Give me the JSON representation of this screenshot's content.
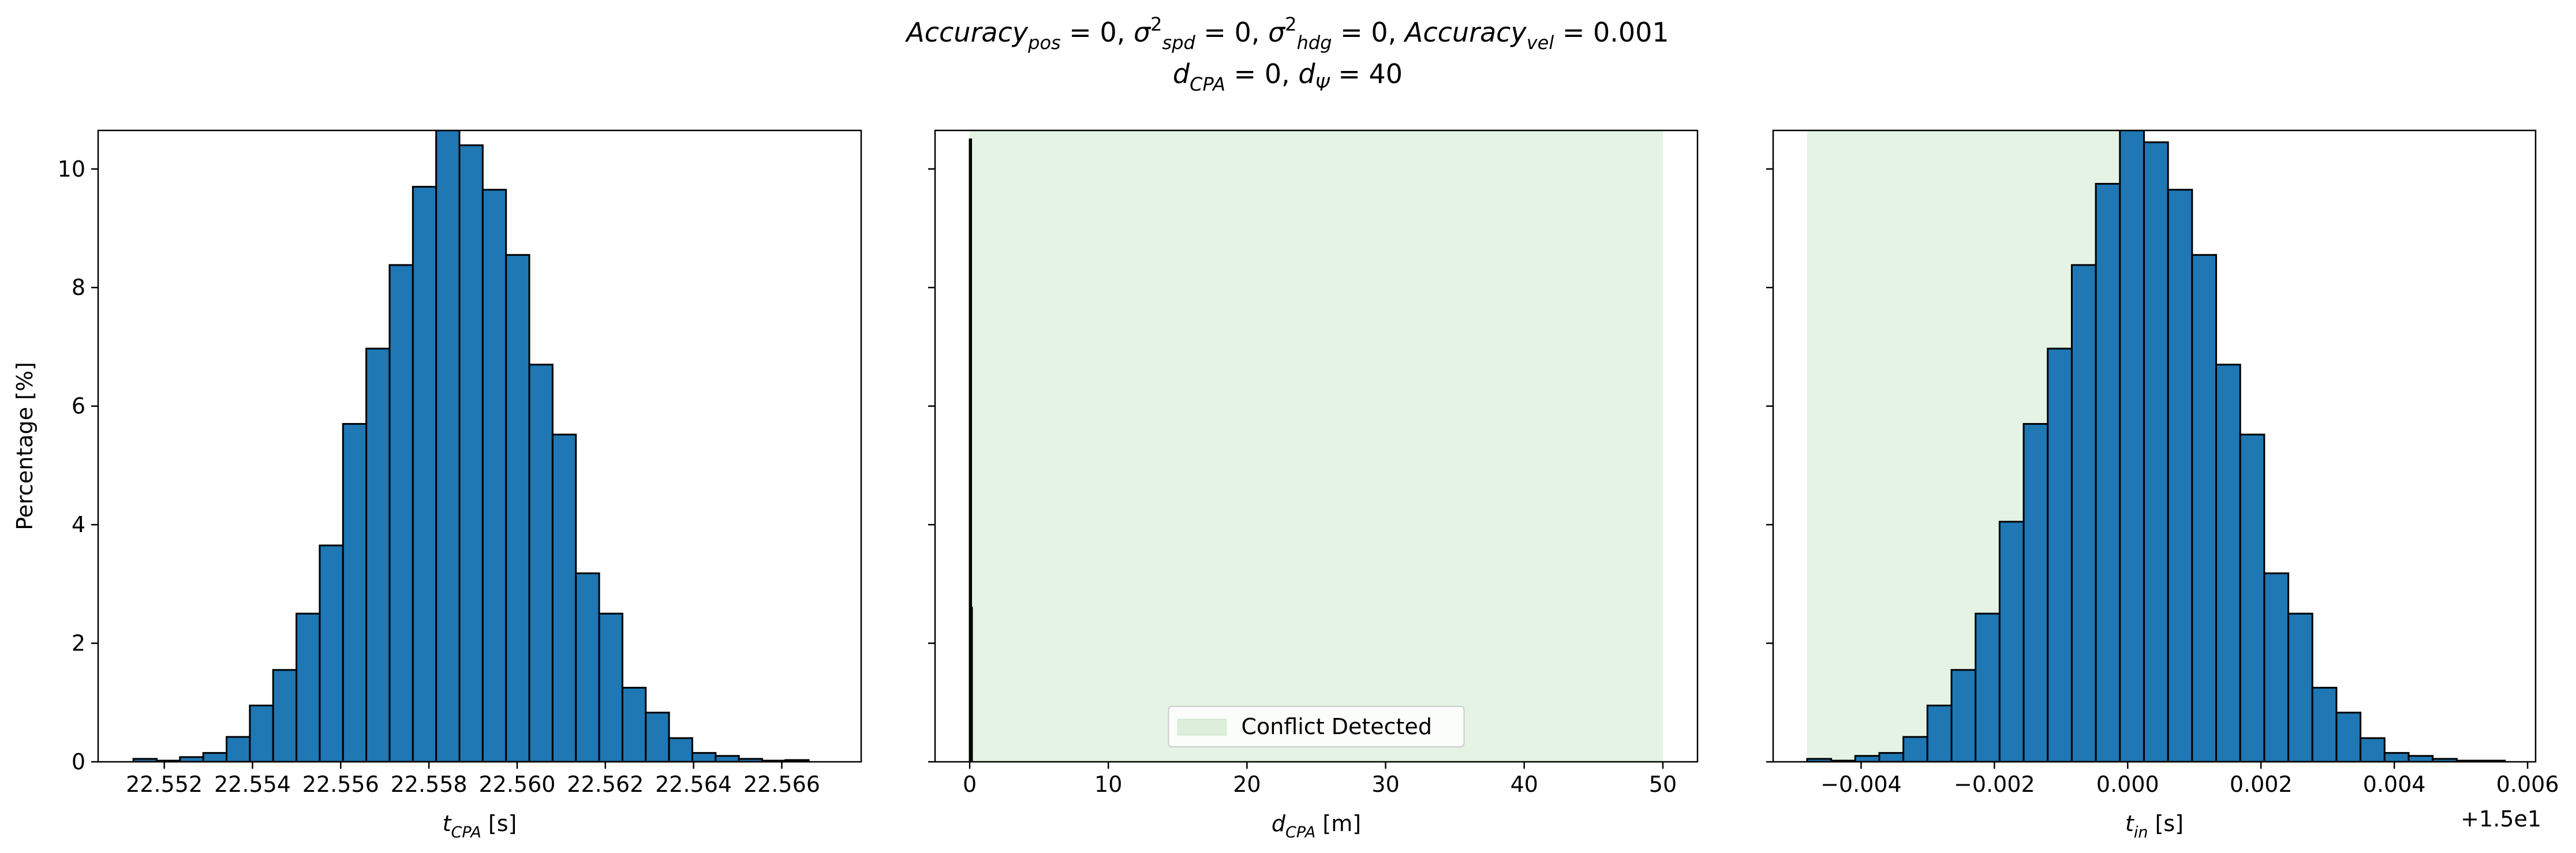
{
  "figure": {
    "title_line1": {
      "parts": [
        {
          "t": "Accuracy",
          "s": "i"
        },
        {
          "t": "pos",
          "s": "sub"
        },
        {
          "t": " = 0, ",
          "s": "n"
        },
        {
          "t": "σ",
          "s": "i"
        },
        {
          "t": "2",
          "s": "sup"
        },
        {
          "t": "spd",
          "s": "sub"
        },
        {
          "t": " = 0, ",
          "s": "n"
        },
        {
          "t": "σ",
          "s": "i"
        },
        {
          "t": "2",
          "s": "sup"
        },
        {
          "t": "hdg",
          "s": "sub"
        },
        {
          "t": " = 0, ",
          "s": "n"
        },
        {
          "t": "Accuracy",
          "s": "i"
        },
        {
          "t": "vel",
          "s": "sub"
        },
        {
          "t": " = 0.001",
          "s": "n"
        }
      ]
    },
    "title_line2": {
      "parts": [
        {
          "t": "d",
          "s": "i"
        },
        {
          "t": "CPA",
          "s": "sub"
        },
        {
          "t": " = 0, ",
          "s": "n"
        },
        {
          "t": "d",
          "s": "i"
        },
        {
          "t": "Ψ",
          "s": "sub"
        },
        {
          "t": " = 40",
          "s": "n"
        }
      ]
    }
  },
  "chart_data": [
    {
      "type": "bar",
      "subtype": "histogram",
      "xlabel": {
        "parts": [
          {
            "t": "t",
            "s": "i"
          },
          {
            "t": "CPA",
            "s": "sub"
          },
          {
            "t": " [s]",
            "s": "n"
          }
        ]
      },
      "ylabel": "Percentage [%]",
      "xlim": [
        22.5505,
        22.5678
      ],
      "ylim": [
        0,
        10.65
      ],
      "xticks": [
        22.552,
        22.554,
        22.556,
        22.558,
        22.56,
        22.562,
        22.564,
        22.566
      ],
      "xtick_labels": [
        "22.552",
        "22.554",
        "22.556",
        "22.558",
        "22.560",
        "22.562",
        "22.564",
        "22.566"
      ],
      "yticks": [
        0,
        2,
        4,
        6,
        8,
        10
      ],
      "ytick_labels": [
        "0",
        "2",
        "4",
        "6",
        "8",
        "10"
      ],
      "bin_start": 22.5513,
      "bin_width": 0.000528,
      "values": [
        0.05,
        0.02,
        0.08,
        0.15,
        0.42,
        0.95,
        1.55,
        2.5,
        3.65,
        5.7,
        6.97,
        8.38,
        9.7,
        10.65,
        10.4,
        9.65,
        8.55,
        6.7,
        5.52,
        3.18,
        2.5,
        1.25,
        0.83,
        0.4,
        0.15,
        0.1,
        0.05,
        0.02,
        0.03
      ],
      "bar_color": "#1f77b4",
      "edge_color": "#000000",
      "grid": false
    },
    {
      "type": "bar",
      "subtype": "histogram",
      "xlabel": {
        "parts": [
          {
            "t": "d",
            "s": "i"
          },
          {
            "t": "CPA",
            "s": "sub"
          },
          {
            "t": " [m]",
            "s": "n"
          }
        ]
      },
      "xlim": [
        -2.5,
        52.5
      ],
      "ylim": [
        0,
        10.65
      ],
      "xticks": [
        0,
        10,
        20,
        30,
        40,
        50
      ],
      "xtick_labels": [
        "0",
        "10",
        "20",
        "30",
        "40",
        "50"
      ],
      "yticks": [
        0,
        2,
        4,
        6,
        8,
        10
      ],
      "bins": [
        {
          "x": 0.0,
          "width": 0.06,
          "value": 10.5
        },
        {
          "x": 0.06,
          "width": 0.06,
          "value": 2.6
        }
      ],
      "bar_color": "#1f77b4",
      "edge_color": "#000000",
      "shaded_region": {
        "x0": 0,
        "x1": 50,
        "color": "#2ca02c",
        "opacity": 0.12
      },
      "legend": {
        "label": "Conflict Detected",
        "placement": "lower center"
      },
      "grid": false
    },
    {
      "type": "bar",
      "subtype": "histogram",
      "xlabel": {
        "parts": [
          {
            "t": "t",
            "s": "i"
          },
          {
            "t": "in",
            "s": "sub"
          },
          {
            "t": " [s]",
            "s": "n"
          }
        ]
      },
      "xlim": [
        -0.00532,
        0.00612
      ],
      "ylim": [
        0,
        10.65
      ],
      "xticks": [
        -0.004,
        -0.002,
        0.0,
        0.002,
        0.004,
        0.006
      ],
      "xtick_labels": [
        "−0.004",
        "−0.002",
        "0.000",
        "0.002",
        "0.004",
        "0.006"
      ],
      "xaxis_offset_label": "+1.5e1",
      "yticks": [
        0,
        2,
        4,
        6,
        8,
        10
      ],
      "bin_start": -0.00481,
      "bin_width": 0.000361,
      "values": [
        0.05,
        0.02,
        0.1,
        0.15,
        0.42,
        0.95,
        1.55,
        2.5,
        4.05,
        5.7,
        6.97,
        8.38,
        9.75,
        10.65,
        10.45,
        9.65,
        8.55,
        6.7,
        5.52,
        3.18,
        2.5,
        1.25,
        0.83,
        0.4,
        0.15,
        0.1,
        0.05,
        0.02,
        0.02
      ],
      "bar_color": "#1f77b4",
      "edge_color": "#000000",
      "shaded_region": {
        "x0": -0.00481,
        "x1": 0.0,
        "color": "#2ca02c",
        "opacity": 0.12
      },
      "grid": false
    }
  ]
}
